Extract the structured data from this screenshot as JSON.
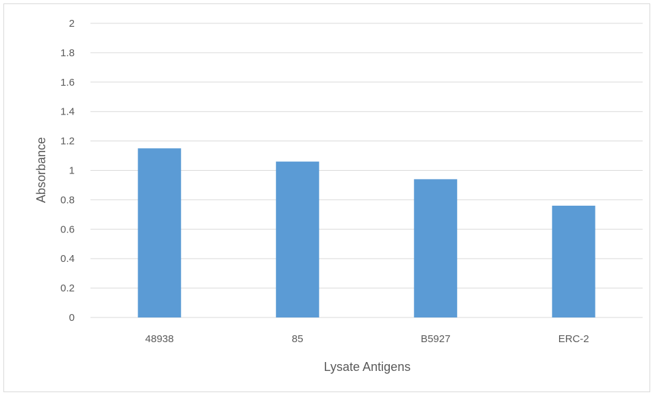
{
  "chart_data": {
    "type": "bar",
    "categories": [
      "48938",
      "85",
      "B5927",
      "ERC-2"
    ],
    "values": [
      1.15,
      1.06,
      0.94,
      0.76
    ],
    "xlabel": "Lysate Antigens",
    "ylabel": "Absorbance",
    "ylim": [
      0,
      2
    ],
    "yticks": [
      "0",
      "0.2",
      "0.4",
      "0.6",
      "0.8",
      "1",
      "1.2",
      "1.4",
      "1.6",
      "1.8",
      "2"
    ],
    "grid": true,
    "legend": "none",
    "bar_color": "#5b9bd5",
    "grid_color": "#d9d9d9"
  }
}
